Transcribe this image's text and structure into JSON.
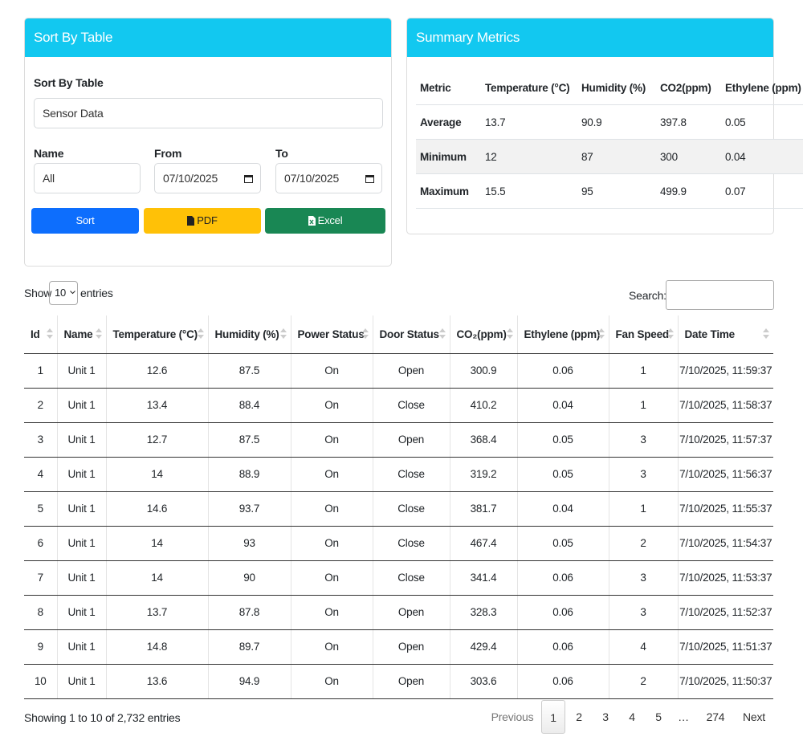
{
  "sort_panel": {
    "title": "Sort By Table",
    "table_label": "Sort By Table",
    "table_value": "Sensor Data",
    "name_label": "Name",
    "name_value": "All",
    "from_label": "From",
    "from_value": "07/10/2025",
    "to_label": "To",
    "to_value": "07/10/2025",
    "sort_button": "Sort",
    "pdf_button": "PDF",
    "excel_button": "Excel"
  },
  "summary": {
    "title": "Summary Metrics",
    "headers": [
      "Metric",
      "Temperature (°C)",
      "Humidity (%)",
      "CO2(ppm)",
      "Ethylene (ppm)"
    ],
    "rows": [
      [
        "Average",
        13.7,
        90.9,
        397.8,
        0.05
      ],
      [
        "Minimum",
        12,
        87,
        300,
        0.04
      ],
      [
        "Maximum",
        15.5,
        95,
        499.9,
        0.07
      ]
    ]
  },
  "table_controls": {
    "show_label": "Show",
    "page_size": 10,
    "entries_label": "entries",
    "search_label": "Search:"
  },
  "table": {
    "headers": [
      "Id",
      "Name",
      "Temperature (°C)",
      "Humidity (%)",
      "Power Status",
      "Door Status",
      "CO₂(ppm)",
      "Ethylene (ppm)",
      "Fan Speed",
      "Date Time"
    ],
    "rows": [
      [
        1,
        "Unit 1",
        12.6,
        87.5,
        "On",
        "Open",
        300.9,
        0.06,
        1,
        "7/10/2025, 11:59:37"
      ],
      [
        2,
        "Unit 1",
        13.4,
        88.4,
        "On",
        "Close",
        410.2,
        0.04,
        1,
        "7/10/2025, 11:58:37"
      ],
      [
        3,
        "Unit 1",
        12.7,
        87.5,
        "On",
        "Open",
        368.4,
        0.05,
        3,
        "7/10/2025, 11:57:37"
      ],
      [
        4,
        "Unit 1",
        14,
        88.9,
        "On",
        "Close",
        319.2,
        0.05,
        3,
        "7/10/2025, 11:56:37"
      ],
      [
        5,
        "Unit 1",
        14.6,
        93.7,
        "On",
        "Close",
        381.7,
        0.04,
        1,
        "7/10/2025, 11:55:37"
      ],
      [
        6,
        "Unit 1",
        14,
        93,
        "On",
        "Close",
        467.4,
        0.05,
        2,
        "7/10/2025, 11:54:37"
      ],
      [
        7,
        "Unit 1",
        14,
        90,
        "On",
        "Close",
        341.4,
        0.06,
        3,
        "7/10/2025, 11:53:37"
      ],
      [
        8,
        "Unit 1",
        13.7,
        87.8,
        "On",
        "Open",
        328.3,
        0.06,
        3,
        "7/10/2025, 11:52:37"
      ],
      [
        9,
        "Unit 1",
        14.8,
        89.7,
        "On",
        "Open",
        429.4,
        0.06,
        4,
        "7/10/2025, 11:51:37"
      ],
      [
        10,
        "Unit 1",
        13.6,
        94.9,
        "On",
        "Open",
        303.6,
        0.06,
        2,
        "7/10/2025, 11:50:37"
      ]
    ]
  },
  "footer": {
    "info": "Showing 1 to 10 of 2,732 entries",
    "pagination": [
      "Previous",
      "1",
      "2",
      "3",
      "4",
      "5",
      "…",
      "274",
      "Next"
    ]
  }
}
